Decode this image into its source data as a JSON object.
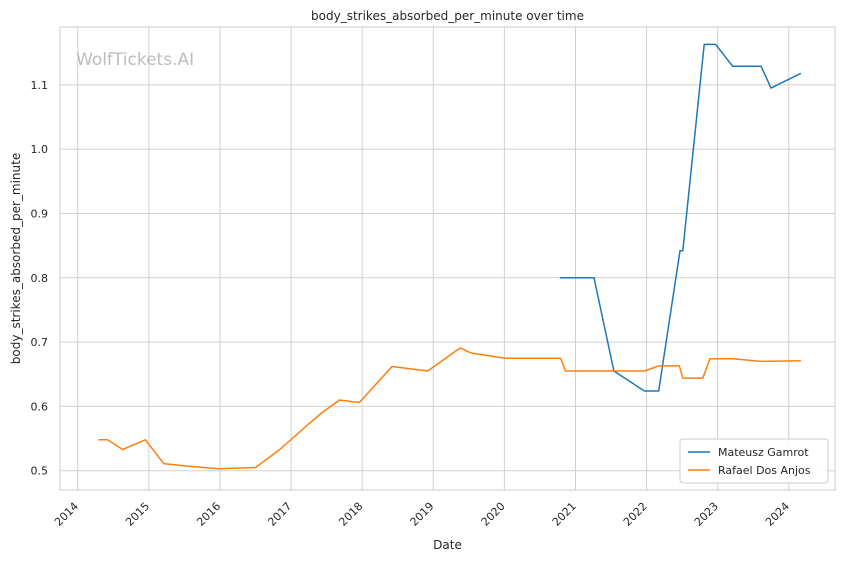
{
  "chart_data": {
    "type": "line",
    "title": "body_strikes_absorbed_per_minute over time",
    "xlabel": "Date",
    "ylabel": "body_strikes_absorbed_per_minute",
    "watermark": "WolfTickets.AI",
    "xlim": [
      2013.75,
      2024.65
    ],
    "ylim": [
      0.47,
      1.19
    ],
    "xticks": [
      2014,
      2015,
      2016,
      2017,
      2018,
      2019,
      2020,
      2021,
      2022,
      2023,
      2024
    ],
    "xtick_labels": [
      "2014",
      "2015",
      "2016",
      "2017",
      "2018",
      "2019",
      "2020",
      "2021",
      "2022",
      "2023",
      "2024"
    ],
    "yticks": [
      0.5,
      0.6,
      0.7,
      0.8,
      0.9,
      1.0,
      1.1
    ],
    "ytick_labels": [
      "0.5",
      "0.6",
      "0.7",
      "0.8",
      "0.9",
      "1.0",
      "1.1"
    ],
    "grid": true,
    "legend_position": "lower-right",
    "series": [
      {
        "name": "Mateusz Gamrot",
        "color": "#1f77b4",
        "x": [
          2020.78,
          2021.26,
          2021.54,
          2021.97,
          2022.17,
          2022.47,
          2022.51,
          2022.81,
          2022.97,
          2023.21,
          2023.61,
          2023.75,
          2024.17
        ],
        "y": [
          0.8,
          0.8,
          0.655,
          0.624,
          0.624,
          0.842,
          0.842,
          1.163,
          1.163,
          1.129,
          1.129,
          1.095,
          1.118
        ]
      },
      {
        "name": "Rafael Dos Anjos",
        "color": "#ff7f0e",
        "x": [
          2014.29,
          2014.42,
          2014.63,
          2014.95,
          2015.21,
          2015.56,
          2015.98,
          2016.5,
          2016.84,
          2017.21,
          2017.42,
          2017.68,
          2017.96,
          2018.42,
          2018.92,
          2019.38,
          2019.53,
          2020.01,
          2020.79,
          2020.86,
          2021.54,
          2021.97,
          2022.17,
          2022.46,
          2022.51,
          2022.79,
          2022.89,
          2023.21,
          2023.61,
          2024.17
        ],
        "y": [
          0.548,
          0.548,
          0.533,
          0.548,
          0.511,
          0.507,
          0.503,
          0.505,
          0.533,
          0.569,
          0.589,
          0.61,
          0.606,
          0.662,
          0.655,
          0.691,
          0.683,
          0.675,
          0.675,
          0.655,
          0.655,
          0.655,
          0.663,
          0.663,
          0.644,
          0.644,
          0.674,
          0.674,
          0.67,
          0.671
        ]
      }
    ]
  }
}
